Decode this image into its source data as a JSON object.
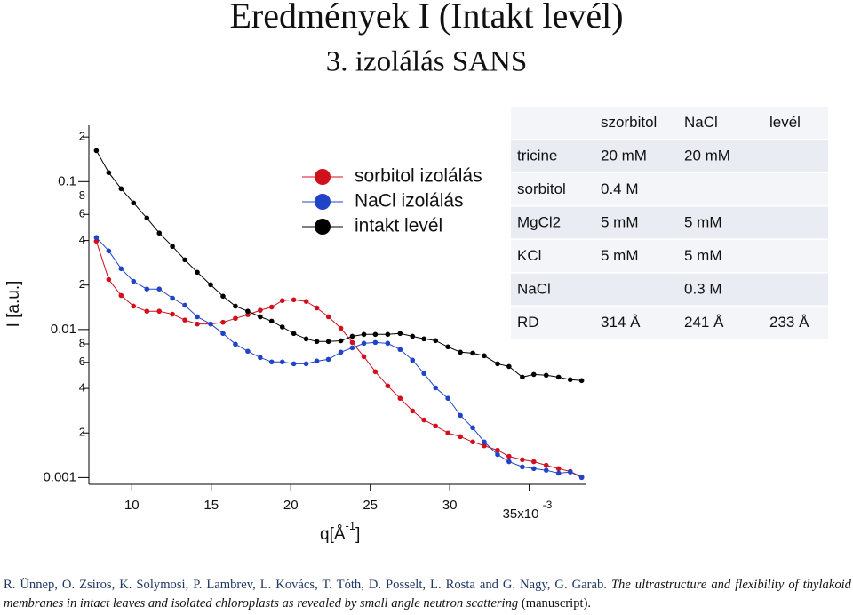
{
  "chart_data": {
    "type": "line",
    "title": "Eredmények I (Intakt levél)",
    "subtitle": "3. izolálás SANS",
    "ylabel": "I [a.u.]",
    "xlabel": "q[Å",
    "xlabel_exponent": "-1",
    "xlabel_end": "]",
    "x_exponent": "-3",
    "log_y": true,
    "grid": false,
    "legend": "top-center",
    "xlim": [
      0.0073,
      0.0386
    ],
    "ylim": [
      0.0009,
      0.24
    ],
    "xticks": [
      {
        "value": 0.01,
        "label": "10"
      },
      {
        "value": 0.015,
        "label": "15"
      },
      {
        "value": 0.02,
        "label": "20"
      },
      {
        "value": 0.025,
        "label": "25"
      },
      {
        "value": 0.03,
        "label": "30"
      },
      {
        "value": 0.035,
        "label": "35x10"
      }
    ],
    "yticks": [
      0.001,
      {
        "value": 0.002,
        "label": "2"
      },
      {
        "value": 0.004,
        "label": "4"
      },
      {
        "value": 0.006,
        "label": "6"
      },
      {
        "value": 0.008,
        "label": "8"
      },
      0.01,
      {
        "value": 0.02,
        "label": "2"
      },
      {
        "value": 0.04,
        "label": "4"
      },
      {
        "value": 0.06,
        "label": "6"
      },
      {
        "value": 0.08,
        "label": "8"
      },
      0.1,
      {
        "value": 0.2,
        "label": "2"
      }
    ],
    "x": [
      0.00777,
      0.00855,
      0.00933,
      0.01011,
      0.01095,
      0.01173,
      0.01256,
      0.01334,
      0.01412,
      0.01496,
      0.01574,
      0.01652,
      0.0173,
      0.01808,
      0.0188,
      0.01947,
      0.02019,
      0.02097,
      0.02164,
      0.02237,
      0.02315,
      0.02387,
      0.0246,
      0.02532,
      0.0261,
      0.02688,
      0.02766,
      0.02838,
      0.02911,
      0.02989,
      0.03067,
      0.03145,
      0.03217,
      0.03301,
      0.03373,
      0.03457,
      0.03529,
      0.03607,
      0.03685,
      0.03758,
      0.0383
    ],
    "series": [
      {
        "name": "sorbitol izolálás",
        "color": "#d0101c",
        "values": [
          0.0396,
          0.0218,
          0.017,
          0.0144,
          0.0133,
          0.0133,
          0.0127,
          0.0116,
          0.0109,
          0.0109,
          0.0112,
          0.0119,
          0.0126,
          0.0135,
          0.0142,
          0.0157,
          0.0159,
          0.0155,
          0.014,
          0.0122,
          0.0102,
          0.00818,
          0.00656,
          0.00519,
          0.00416,
          0.00343,
          0.00282,
          0.00245,
          0.00223,
          0.002,
          0.00189,
          0.00174,
          0.00164,
          0.00153,
          0.00139,
          0.00132,
          0.00128,
          0.00121,
          0.00115,
          0.0011,
          0.00101
        ]
      },
      {
        "name": "NaCl izolálás",
        "color": "#1f44c8",
        "values": [
          0.0419,
          0.034,
          0.0258,
          0.0212,
          0.0188,
          0.0188,
          0.0163,
          0.0146,
          0.0122,
          0.0109,
          0.0094,
          0.00796,
          0.00713,
          0.00647,
          0.00604,
          0.00604,
          0.00587,
          0.00587,
          0.00612,
          0.00629,
          0.00703,
          0.00753,
          0.00807,
          0.00818,
          0.00807,
          0.00733,
          0.00621,
          0.00505,
          0.00404,
          0.00343,
          0.00263,
          0.00217,
          0.00174,
          0.00143,
          0.00128,
          0.00118,
          0.00115,
          0.00112,
          0.00107,
          0.00109,
          0.001
        ]
      },
      {
        "name": "intakt levél",
        "color": "#000000",
        "values": [
          0.162,
          0.115,
          0.0895,
          0.0718,
          0.0567,
          0.0449,
          0.0365,
          0.0296,
          0.0244,
          0.0201,
          0.0168,
          0.0144,
          0.0133,
          0.0122,
          0.0114,
          0.0104,
          0.0094,
          0.00865,
          0.0083,
          0.0083,
          0.0084,
          0.009,
          0.00927,
          0.00927,
          0.00927,
          0.0094,
          0.009,
          0.00865,
          0.00842,
          0.00764,
          0.00703,
          0.00693,
          0.00665,
          0.00587,
          0.00563,
          0.00477,
          0.00497,
          0.00491,
          0.00477,
          0.00458,
          0.00452
        ]
      }
    ]
  },
  "table": {
    "header": [
      null,
      "szorbitol",
      "NaCl",
      "levél"
    ],
    "rows": [
      [
        "tricine",
        "20 mM",
        "20 mM",
        null
      ],
      [
        "sorbitol",
        "0.4 M",
        null,
        null
      ],
      [
        "MgCl2",
        "5 mM",
        "5 mM",
        null
      ],
      [
        "KCl",
        "5 mM",
        "5 mM",
        null
      ],
      [
        "NaCl",
        null,
        "0.3 M",
        null
      ],
      [
        "RD",
        "314 Å",
        "241 Å",
        "233 Å"
      ]
    ]
  },
  "citation": {
    "authors": "R. Ünnep, O. Zsiros, K. Solymosi, P. Lambrev, L. Kovács, T. Tóth, D. Posselt, L. Rosta and G. Nagy, G. Garab.",
    "title": "The ultrastructure and flexibility of thylakoid membranes in intact leaves and isolated chloroplasts as revealed by small angle neutron scattering",
    "note": "(manuscript)."
  }
}
